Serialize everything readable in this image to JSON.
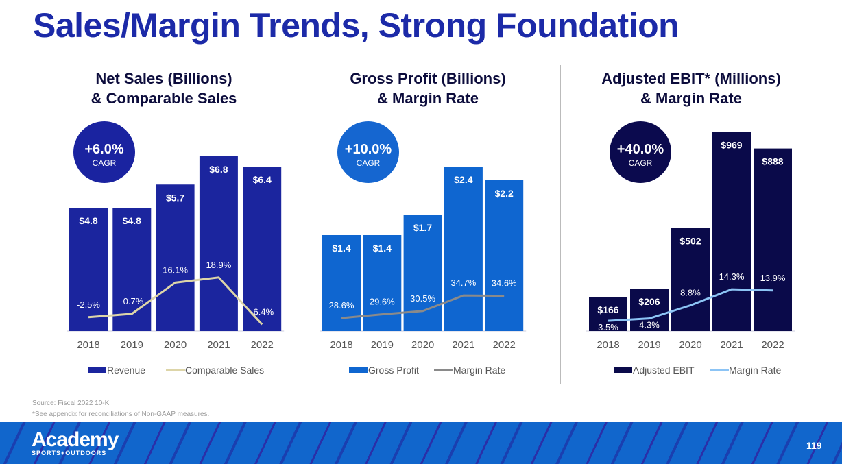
{
  "title": "Sales/Margin Trends, Strong Foundation",
  "footnotes": {
    "source": "Source: Fiscal 2022 10-K",
    "note": "*See appendix for reconciliations of Non-GAAP measures."
  },
  "footer": {
    "logo": "Academy",
    "logo_sub": "SPORTS+OUTDOORS",
    "page_number": "119"
  },
  "chart_data": [
    {
      "type": "bar",
      "title_line1": "Net Sales (Billions)",
      "title_line2": "& Comparable Sales",
      "cagr_value": "+6.0%",
      "cagr_label": "CAGR",
      "categories": [
        "2018",
        "2019",
        "2020",
        "2021",
        "2022"
      ],
      "series": [
        {
          "name": "Revenue",
          "type": "bar",
          "values": [
            4.8,
            4.8,
            5.7,
            6.8,
            6.4
          ],
          "labels": [
            "$4.8",
            "$4.8",
            "$5.7",
            "$6.8",
            "$6.4"
          ],
          "color": "#1b259e"
        },
        {
          "name": "Comparable Sales",
          "type": "line",
          "values": [
            -2.5,
            -0.7,
            16.1,
            18.9,
            -6.4
          ],
          "labels": [
            "-2.5%",
            "-0.7%",
            "16.1%",
            "18.9%",
            "-6.4%"
          ],
          "color": "#ddd5a8"
        }
      ],
      "legend": "bottom",
      "cagr_color": "#1a23a0"
    },
    {
      "type": "bar",
      "title_line1": "Gross Profit (Billions)",
      "title_line2": "& Margin Rate",
      "cagr_value": "+10.0%",
      "cagr_label": "CAGR",
      "categories": [
        "2018",
        "2019",
        "2020",
        "2021",
        "2022"
      ],
      "series": [
        {
          "name": "Gross Profit",
          "type": "bar",
          "values": [
            1.4,
            1.4,
            1.7,
            2.4,
            2.2
          ],
          "labels": [
            "$1.4",
            "$1.4",
            "$1.7",
            "$2.4",
            "$2.2"
          ],
          "color": "#0f66d0"
        },
        {
          "name": "Margin Rate",
          "type": "line",
          "values": [
            28.6,
            29.6,
            30.5,
            34.7,
            34.6
          ],
          "labels": [
            "28.6%",
            "29.6%",
            "30.5%",
            "34.7%",
            "34.6%"
          ],
          "color": "#8a8a8a"
        }
      ],
      "legend": "bottom",
      "cagr_color": "#1566d0"
    },
    {
      "type": "bar",
      "title_line1": "Adjusted EBIT* (Millions)",
      "title_line2": "& Margin Rate",
      "cagr_value": "+40.0%",
      "cagr_label": "CAGR",
      "categories": [
        "2018",
        "2019",
        "2020",
        "2021",
        "2022"
      ],
      "series": [
        {
          "name": "Adjusted EBIT",
          "type": "bar",
          "values": [
            166,
            206,
            502,
            969,
            888
          ],
          "labels": [
            "$166",
            "$206",
            "$502",
            "$969",
            "$888"
          ],
          "color": "#0a0a4a"
        },
        {
          "name": "Margin Rate",
          "type": "line",
          "values": [
            3.5,
            4.3,
            8.8,
            14.3,
            13.9
          ],
          "labels": [
            "3.5%",
            "4.3%",
            "8.8%",
            "14.3%",
            "13.9%"
          ],
          "color": "#8cc4f5"
        }
      ],
      "legend": "bottom",
      "cagr_color": "#0b0a4e"
    }
  ]
}
